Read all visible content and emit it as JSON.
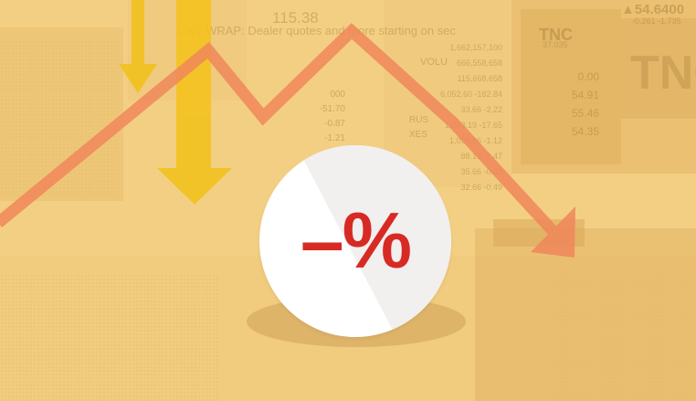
{
  "colors": {
    "background": "#f3cf83",
    "trend_line": "#f0875a",
    "arrow_yellow": "#f2c21c",
    "badge_fill": "#ffffff",
    "percent_red": "#d72a25"
  },
  "badge": {
    "label": "–%"
  },
  "board": {
    "top_number": "115.38",
    "caption": "CNT WRAP: Dealer quotes and more starting on sec",
    "price_top_right": "▲54.6400",
    "price_top_right_sub": "-0.261 -1.735",
    "symbol_left": "TNC",
    "symbol_left_sub": "37.035",
    "symbol_big": "TNC",
    "volume_label": "VOLU",
    "prices_right": [
      "0.00",
      "54.91",
      "55.46",
      "54.35"
    ],
    "values_mid": [
      "1,662,157,100",
      "666,558,658",
      "115,668,658",
      "6,052.60 -182.84",
      "33.66 -2.22",
      "1,013.19 -17.65",
      "1,098.06 -1.12",
      "88.19 -2.47",
      "35.66 -0.03",
      "32.66 -0.49"
    ],
    "values_left": [
      "000",
      "-51.70",
      "-0.87",
      "-1.21",
      "-3.76"
    ],
    "mid_labels": [
      "RUS",
      "XES"
    ]
  }
}
